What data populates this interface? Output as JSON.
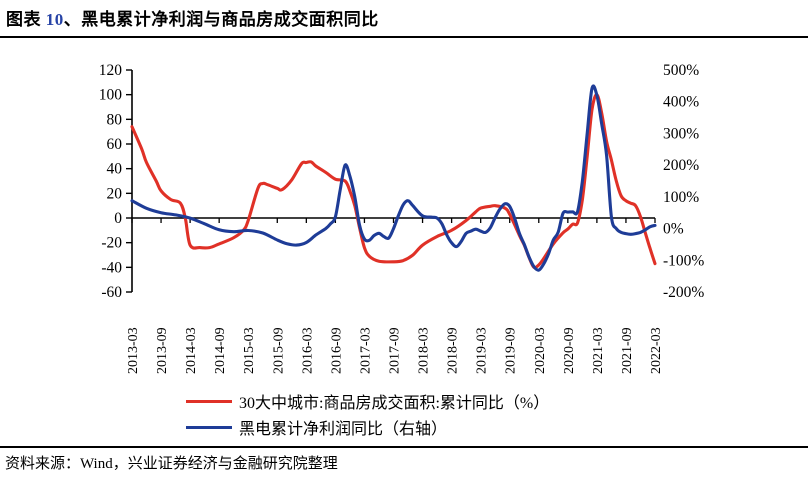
{
  "title": {
    "prefix": "图表 ",
    "number": "10",
    "rest": "、黑电累计净利润与商品房成交面积同比"
  },
  "source_note": "资料来源：Wind，兴业证券经济与金融研究院整理",
  "colors": {
    "red_series": "#e03127",
    "blue_series": "#1e3c97",
    "axis": "#000000",
    "title_number": "#2743a6",
    "text": "#000000"
  },
  "legend": {
    "items": [
      {
        "label": "30大中城市:商品房成交面积:累计同比（%）",
        "color_key": "red_series"
      },
      {
        "label": "黑电累计净利润同比（右轴）",
        "color_key": "blue_series"
      }
    ]
  },
  "chart_data": {
    "type": "line",
    "title": "黑电累计净利润与商品房成交面积同比",
    "x_unit": "months_since_2013_03",
    "x_tick_labels": [
      "2013-03",
      "2013-09",
      "2014-03",
      "2014-09",
      "2015-03",
      "2015-09",
      "2016-03",
      "2016-09",
      "2017-03",
      "2017-09",
      "2018-03",
      "2018-09",
      "2019-03",
      "2019-09",
      "2020-03",
      "2020-09",
      "2021-03",
      "2021-09",
      "2022-03"
    ],
    "x_months_per_tick": 6,
    "x_total_months": 108,
    "left_axis": {
      "min": -60,
      "max": 120,
      "step": 20,
      "tick_labels": [
        "120",
        "100",
        "80",
        "60",
        "40",
        "20",
        "0",
        "-20",
        "-40",
        "-60"
      ]
    },
    "right_axis": {
      "min": -200,
      "max": 500,
      "step": 100,
      "tick_labels": [
        "500%",
        "400%",
        "300%",
        "200%",
        "100%",
        "0%",
        "-100%",
        "-200%"
      ]
    },
    "grid": false,
    "legend_position": "bottom",
    "series": [
      {
        "name": "30大中城市:商品房成交面积:累计同比（%）",
        "axis": "left",
        "color_key": "red_series",
        "points": [
          [
            0,
            74
          ],
          [
            2,
            56
          ],
          [
            3,
            45
          ],
          [
            5,
            30
          ],
          [
            6,
            22
          ],
          [
            8,
            15
          ],
          [
            10,
            12
          ],
          [
            11,
            0
          ],
          [
            12,
            -22
          ],
          [
            14,
            -24
          ],
          [
            16,
            -24
          ],
          [
            18,
            -21
          ],
          [
            21,
            -16
          ],
          [
            23,
            -10
          ],
          [
            24,
            -2
          ],
          [
            26,
            24
          ],
          [
            27,
            28
          ],
          [
            28,
            27
          ],
          [
            30,
            24
          ],
          [
            31,
            23
          ],
          [
            33,
            31
          ],
          [
            35,
            44
          ],
          [
            36,
            45
          ],
          [
            37,
            45.5
          ],
          [
            38,
            42
          ],
          [
            40,
            37
          ],
          [
            42,
            31.5
          ],
          [
            44,
            30
          ],
          [
            45,
            22
          ],
          [
            46,
            10
          ],
          [
            47,
            -8
          ],
          [
            48,
            -24
          ],
          [
            49,
            -31
          ],
          [
            51,
            -35
          ],
          [
            54,
            -35.5
          ],
          [
            56,
            -34.5
          ],
          [
            58,
            -30
          ],
          [
            60,
            -22
          ],
          [
            63,
            -15
          ],
          [
            66,
            -10
          ],
          [
            69,
            -2
          ],
          [
            71,
            5
          ],
          [
            72,
            8
          ],
          [
            74,
            9.5
          ],
          [
            75,
            10
          ],
          [
            77,
            8
          ],
          [
            78,
            3
          ],
          [
            80,
            -14
          ],
          [
            81,
            -22
          ],
          [
            82,
            -32
          ],
          [
            83,
            -40
          ],
          [
            84,
            -38
          ],
          [
            85,
            -33
          ],
          [
            87,
            -21
          ],
          [
            89,
            -12
          ],
          [
            90,
            -9
          ],
          [
            91,
            -5
          ],
          [
            92,
            -4
          ],
          [
            93,
            15
          ],
          [
            94,
            50
          ],
          [
            95,
            88
          ],
          [
            96,
            100
          ],
          [
            97,
            85
          ],
          [
            98,
            62
          ],
          [
            99,
            47
          ],
          [
            100,
            30
          ],
          [
            101,
            18
          ],
          [
            102,
            14
          ],
          [
            103,
            12
          ],
          [
            104,
            10
          ],
          [
            105,
            1
          ],
          [
            106,
            -12
          ],
          [
            107,
            -25
          ],
          [
            108,
            -37
          ]
        ]
      },
      {
        "name": "黑电累计净利润同比（右轴）",
        "axis": "right",
        "color_key": "blue_series",
        "points": [
          [
            0,
            88
          ],
          [
            3,
            64
          ],
          [
            6,
            50
          ],
          [
            9,
            43
          ],
          [
            12,
            33
          ],
          [
            15,
            15
          ],
          [
            18,
            -4
          ],
          [
            21,
            -10
          ],
          [
            24,
            -6
          ],
          [
            27,
            -14
          ],
          [
            30,
            -36
          ],
          [
            32,
            -48
          ],
          [
            34,
            -52
          ],
          [
            36,
            -44
          ],
          [
            38,
            -20
          ],
          [
            40,
            0
          ],
          [
            41,
            15
          ],
          [
            42,
            37
          ],
          [
            43,
            122
          ],
          [
            44,
            200
          ],
          [
            45,
            165
          ],
          [
            46,
            100
          ],
          [
            47,
            10
          ],
          [
            48,
            -33
          ],
          [
            49,
            -37
          ],
          [
            50,
            -22
          ],
          [
            51,
            -15
          ],
          [
            52,
            -25
          ],
          [
            53,
            -30
          ],
          [
            54,
            0
          ],
          [
            55,
            40
          ],
          [
            56,
            75
          ],
          [
            57,
            88
          ],
          [
            58,
            72
          ],
          [
            60,
            40
          ],
          [
            62,
            36
          ],
          [
            63,
            33
          ],
          [
            64,
            15
          ],
          [
            65,
            -20
          ],
          [
            66,
            -45
          ],
          [
            67,
            -57
          ],
          [
            68,
            -40
          ],
          [
            69,
            -15
          ],
          [
            70,
            -8
          ],
          [
            71,
            -2
          ],
          [
            72,
            -8
          ],
          [
            73,
            -12
          ],
          [
            74,
            3
          ],
          [
            75,
            35
          ],
          [
            76,
            62
          ],
          [
            77,
            78
          ],
          [
            78,
            70
          ],
          [
            79,
            33
          ],
          [
            80,
            -15
          ],
          [
            81,
            -50
          ],
          [
            82,
            -90
          ],
          [
            83,
            -120
          ],
          [
            84,
            -131
          ],
          [
            85,
            -112
          ],
          [
            86,
            -80
          ],
          [
            87,
            -36
          ],
          [
            88,
            -12
          ],
          [
            89,
            48
          ],
          [
            90,
            52
          ],
          [
            91,
            53
          ],
          [
            92,
            53
          ],
          [
            93,
            150
          ],
          [
            94,
            300
          ],
          [
            95,
            442
          ],
          [
            96,
            420
          ],
          [
            97,
            330
          ],
          [
            98,
            230
          ],
          [
            99,
            37
          ],
          [
            100,
            0
          ],
          [
            101,
            -12
          ],
          [
            102,
            -16
          ],
          [
            103,
            -18
          ],
          [
            104,
            -16
          ],
          [
            105,
            -12
          ],
          [
            106,
            -4
          ],
          [
            107,
            6
          ],
          [
            108,
            10
          ]
        ]
      }
    ]
  }
}
